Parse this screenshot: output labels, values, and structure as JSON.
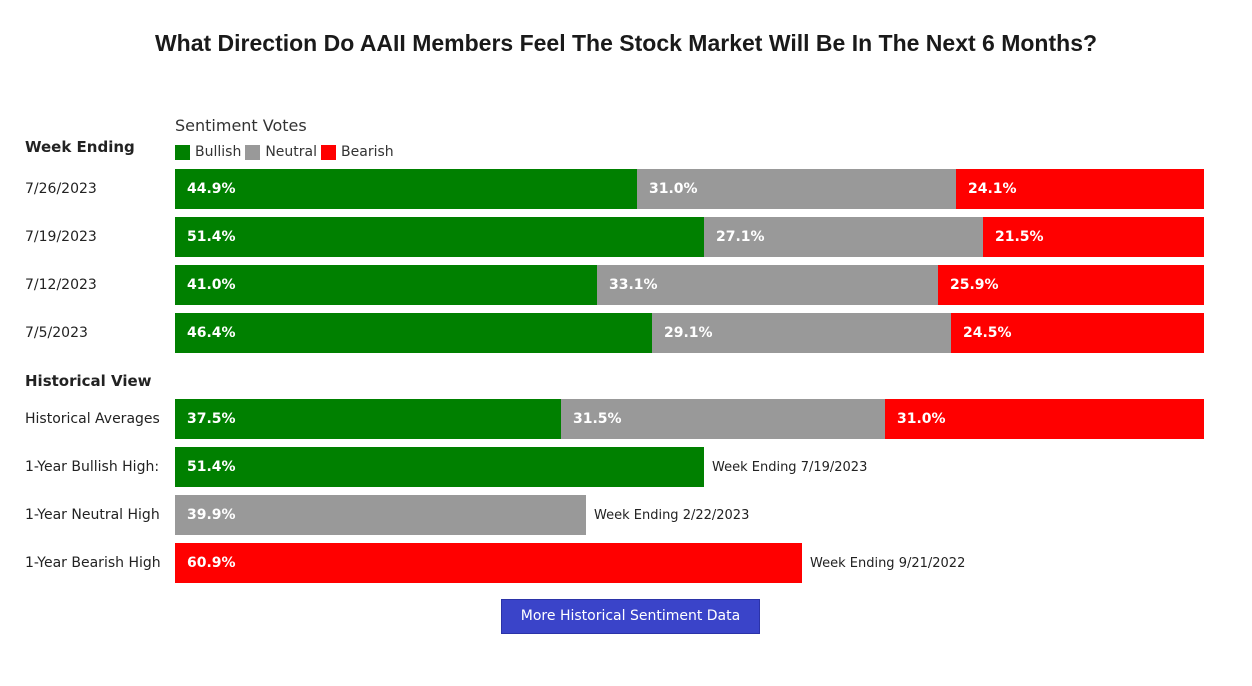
{
  "title": "What Direction Do AAII Members Feel The Stock Market Will Be In The Next 6 Months?",
  "votes_label": "Sentiment Votes",
  "week_header": "Week Ending",
  "historical_header": "Historical View",
  "colors": {
    "bullish": "#008000",
    "neutral": "#999999",
    "bearish": "#ff0000"
  },
  "legend": [
    {
      "label": "Bullish",
      "color": "#008000"
    },
    {
      "label": "Neutral",
      "color": "#999999"
    },
    {
      "label": "Bearish",
      "color": "#ff0000"
    }
  ],
  "chart_data": [
    {
      "type": "bar",
      "stacked": true,
      "orientation": "horizontal",
      "categories": [
        "7/26/2023",
        "7/19/2023",
        "7/12/2023",
        "7/5/2023"
      ],
      "series": [
        {
          "name": "Bullish",
          "values": [
            44.9,
            51.4,
            41.0,
            46.4
          ],
          "labels": [
            "44.9%",
            "51.4%",
            "41.0%",
            "46.4%"
          ]
        },
        {
          "name": "Neutral",
          "values": [
            31.0,
            27.1,
            33.1,
            29.1
          ],
          "labels": [
            "31.0%",
            "27.1%",
            "33.1%",
            "29.1%"
          ]
        },
        {
          "name": "Bearish",
          "values": [
            24.1,
            21.5,
            25.9,
            24.5
          ],
          "labels": [
            "24.1%",
            "21.5%",
            "25.9%",
            "24.5%"
          ]
        }
      ],
      "xlim": [
        0,
        100
      ]
    },
    {
      "type": "bar",
      "stacked": true,
      "orientation": "horizontal",
      "categories": [
        "Historical Averages"
      ],
      "series": [
        {
          "name": "Bullish",
          "values": [
            37.5
          ],
          "labels": [
            "37.5%"
          ]
        },
        {
          "name": "Neutral",
          "values": [
            31.5
          ],
          "labels": [
            "31.5%"
          ]
        },
        {
          "name": "Bearish",
          "values": [
            31.0
          ],
          "labels": [
            "31.0%"
          ]
        }
      ],
      "xlim": [
        0,
        100
      ]
    },
    {
      "type": "bar",
      "orientation": "horizontal",
      "categories": [
        "1-Year Bullish High:",
        "1-Year Neutral High",
        "1-Year Bearish High"
      ],
      "values": [
        51.4,
        39.9,
        60.9
      ],
      "labels": [
        "51.4%",
        "39.9%",
        "60.9%"
      ],
      "kinds": [
        "bullish",
        "neutral",
        "bearish"
      ],
      "notes": [
        "Week Ending 7/19/2023",
        "Week Ending 2/22/2023",
        "Week Ending 9/21/2022"
      ],
      "xlim": [
        0,
        100
      ]
    }
  ],
  "more_button": "More Historical Sentiment Data"
}
